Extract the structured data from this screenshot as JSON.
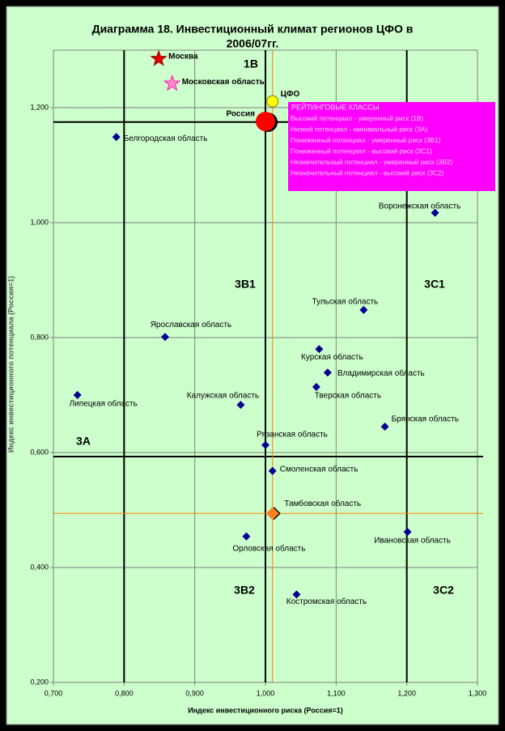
{
  "chart_data": {
    "type": "scatter",
    "title_lines": [
      "Диаграмма 18. Инвестиционный климат регионов ЦФО в",
      "2006/07гг."
    ],
    "x_label": "Индекс инвестиционного риска (Россия=1)",
    "y_label": "Индекс инвестиционного потенциала (Россия=1)",
    "xlim": [
      0.7,
      1.3
    ],
    "ylim": [
      0.2,
      1.3
    ],
    "xticks": [
      {
        "value": 0.7,
        "label": "0,700"
      },
      {
        "value": 0.8,
        "label": "0,800"
      },
      {
        "value": 0.9,
        "label": "0,900"
      },
      {
        "value": 1.0,
        "label": "1,000"
      },
      {
        "value": 1.1,
        "label": "1,100"
      },
      {
        "value": 1.2,
        "label": "1,200"
      },
      {
        "value": 1.3,
        "label": "1,300"
      }
    ],
    "yticks": [
      {
        "value": 0.2,
        "label": "0,200"
      },
      {
        "value": 0.4,
        "label": "0,400"
      },
      {
        "value": 0.6,
        "label": "0,600"
      },
      {
        "value": 0.8,
        "label": "0,800"
      },
      {
        "value": 1.0,
        "label": "1,000"
      },
      {
        "value": 1.2,
        "label": "1,200"
      }
    ],
    "grid": true,
    "points": [
      {
        "label": "Москва",
        "x": 0.849,
        "y": 1.285,
        "color": "#e00000",
        "marker": "star"
      },
      {
        "label": "Московская область",
        "x": 0.868,
        "y": 1.242,
        "color": "#ff88cc",
        "marker": "star"
      },
      {
        "label": "ЦФО",
        "x": 1.01,
        "y": 1.211,
        "color": "#ffff00",
        "marker": "circle"
      },
      {
        "label": "Россия",
        "x": 1.0,
        "y": 1.176,
        "color": "#ff0000",
        "marker": "bigcircle"
      },
      {
        "label": "Белгородская область",
        "x": 0.789,
        "y": 1.149,
        "color": "#000090",
        "marker": "diamond"
      },
      {
        "label": "Воронежская область",
        "x": 1.24,
        "y": 1.017,
        "color": "#000090",
        "marker": "diamond"
      },
      {
        "label": "Тульская область",
        "x": 1.139,
        "y": 0.848,
        "color": "#000090",
        "marker": "diamond"
      },
      {
        "label": "Ярославская область",
        "x": 0.858,
        "y": 0.801,
        "color": "#000090",
        "marker": "diamond"
      },
      {
        "label": "Курская область",
        "x": 1.076,
        "y": 0.78,
        "color": "#000090",
        "marker": "diamond"
      },
      {
        "label": "Владимирская область",
        "x": 1.088,
        "y": 0.739,
        "color": "#000090",
        "marker": "diamond"
      },
      {
        "label": "Тверская область",
        "x": 1.072,
        "y": 0.714,
        "color": "#000090",
        "marker": "diamond"
      },
      {
        "label": "Липецкая область",
        "x": 0.734,
        "y": 0.7,
        "color": "#000090",
        "marker": "diamond"
      },
      {
        "label": "Калужская область",
        "x": 0.965,
        "y": 0.683,
        "color": "#000090",
        "marker": "diamond"
      },
      {
        "label": "Брянская область",
        "x": 1.169,
        "y": 0.645,
        "color": "#000090",
        "marker": "diamond"
      },
      {
        "label": "Рязанская область",
        "x": 1.0,
        "y": 0.613,
        "color": "#000090",
        "marker": "diamond"
      },
      {
        "label": "Смоленская область",
        "x": 1.01,
        "y": 0.568,
        "color": "#000090",
        "marker": "diamond"
      },
      {
        "label": "Тамбовская область",
        "x": 1.01,
        "y": 0.494,
        "color": "#ff8020",
        "marker": "bigdiamond"
      },
      {
        "label": "Орловская область",
        "x": 0.973,
        "y": 0.454,
        "color": "#000090",
        "marker": "diamond"
      },
      {
        "label": "Ивановская область",
        "x": 1.201,
        "y": 0.462,
        "color": "#000090",
        "marker": "diamond"
      },
      {
        "label": "Костромская область",
        "x": 1.044,
        "y": 0.353,
        "color": "#000090",
        "marker": "diamond"
      }
    ],
    "reference_lines": [
      {
        "axis": "x",
        "value": 0.8,
        "color": "#000000"
      },
      {
        "axis": "x",
        "value": 1.0,
        "color": "#000000"
      },
      {
        "axis": "x",
        "value": 1.2,
        "color": "#000000"
      },
      {
        "axis": "y",
        "value": 0.593,
        "color": "#000000"
      },
      {
        "axis": "y",
        "value": 1.175,
        "color": "#000000"
      },
      {
        "axis": "x",
        "value": 1.01,
        "color": "#ff8000"
      },
      {
        "axis": "y",
        "value": 0.494,
        "color": "#ff8000"
      }
    ],
    "class_labels": [
      "1В",
      "3В1",
      "3С1",
      "3А",
      "3В2",
      "3С2"
    ],
    "legend_title": "РЕЙТИНГОВЫЕ КЛАССЫ",
    "legend_items": [
      "Высокий потенциал - умеренный риск (1В)",
      "Низкий потенциал - минимальный риск (3А)",
      "Пониженный потенциал - умеренный риск (3В1)",
      "Пониженный потенциал - высокий риск (3С1)",
      "Незначительный потенциал - умеренный риск (3В2)",
      "Незначительный потенциал - высокий риск (3С2)"
    ]
  }
}
